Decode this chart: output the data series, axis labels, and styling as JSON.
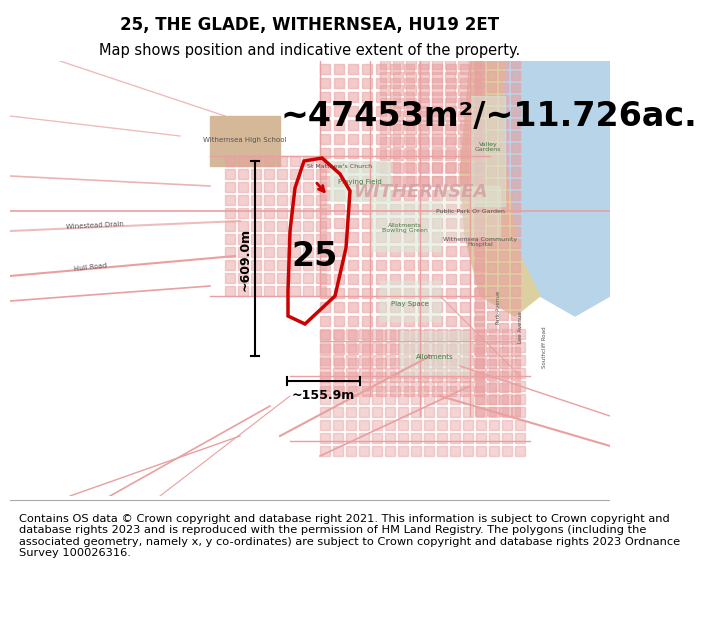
{
  "title": "25, THE GLADE, WITHERNSEA, HU19 2ET",
  "subtitle": "Map shows position and indicative extent of the property.",
  "area_label": "~47453m²/~11.726ac.",
  "property_number": "25",
  "dim_vertical": "~609.0m",
  "dim_horizontal": "~155.9m",
  "footer": "Contains OS data © Crown copyright and database right 2021. This information is subject to Crown copyright and database rights 2023 and is reproduced with the permission of HM Land Registry. The polygons (including the associated geometry, namely x, y co-ordinates) are subject to Crown copyright and database rights 2023 Ordnance Survey 100026316.",
  "title_fontsize": 12,
  "subtitle_fontsize": 10.5,
  "area_fontsize": 24,
  "number_fontsize": 24,
  "footer_fontsize": 8.2,
  "map_bg": "#f8f4f4",
  "red_color": "#cc0000",
  "pink_road": "#e8a0a0",
  "dark_road": "#c07070"
}
